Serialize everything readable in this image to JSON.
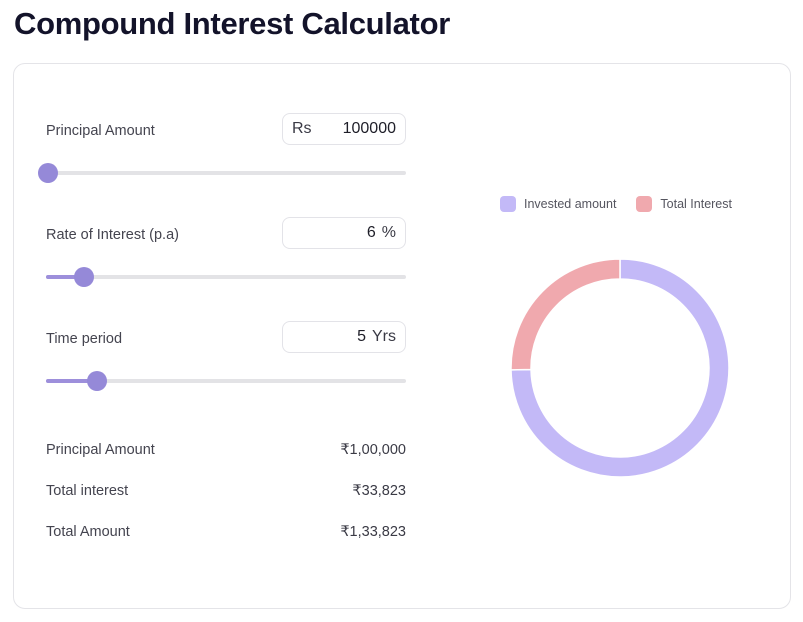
{
  "page": {
    "title": "Compound Interest Calculator"
  },
  "inputs": {
    "principal": {
      "label": "Principal Amount",
      "prefix": "Rs",
      "value": "100000",
      "slider_fraction": 0.0
    },
    "rate": {
      "label": "Rate of Interest (p.a)",
      "value": "6",
      "suffix": "%",
      "slider_fraction": 0.1
    },
    "time": {
      "label": "Time period",
      "value": "5",
      "suffix": "Yrs",
      "slider_fraction": 0.138
    }
  },
  "summary": {
    "principal_label": "Principal Amount",
    "principal_value": "₹1,00,000",
    "interest_label": "Total interest",
    "interest_value": "₹33,823",
    "total_label": "Total Amount",
    "total_value": "₹1,33,823"
  },
  "chart_data": {
    "type": "pie",
    "categories": [
      "Invested amount",
      "Total Interest"
    ],
    "values": [
      100000,
      33823
    ],
    "colors": [
      "#c3b9f7",
      "#f0a9ae"
    ],
    "legend_position": "top"
  }
}
